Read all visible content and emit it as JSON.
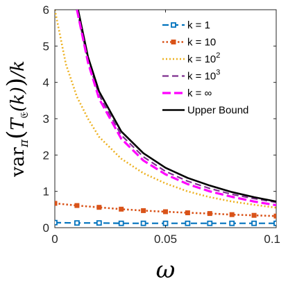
{
  "chart_data": {
    "type": "line",
    "title": "",
    "xlabel": "ω",
    "ylabel_parts": {
      "main": "var",
      "sub_pi": "π",
      "open": "(",
      "T": "T",
      "sub_E": "𝔈",
      "arg": "(k)",
      "close": ")",
      "tail": "/k"
    },
    "xlim": [
      0,
      0.1
    ],
    "ylim": [
      0,
      6
    ],
    "x_ticks": [
      "0",
      "0.05",
      "0.1"
    ],
    "y_ticks": [
      "0",
      "1",
      "2",
      "3",
      "4",
      "5",
      "6"
    ],
    "grid": false,
    "legend_position": "top-right",
    "legend": [
      {
        "label": "k = 1",
        "sup": ""
      },
      {
        "label": "k = 10",
        "sup": ""
      },
      {
        "label": "k = 10",
        "sup": "2"
      },
      {
        "label": "k = 10",
        "sup": "3"
      },
      {
        "label": "k = ∞",
        "sup": ""
      },
      {
        "label": "Upper Bound",
        "sup": ""
      }
    ],
    "series": [
      {
        "style": "dash-square",
        "color": "#0072BD",
        "x": [
          0,
          0.01,
          0.02,
          0.03,
          0.04,
          0.05,
          0.06,
          0.07,
          0.08,
          0.09,
          0.1
        ],
        "y": [
          0.14,
          0.13,
          0.13,
          0.12,
          0.12,
          0.12,
          0.12,
          0.12,
          0.12,
          0.12,
          0.12
        ]
      },
      {
        "style": "dot-square",
        "color": "#D95319",
        "x": [
          0,
          0.01,
          0.02,
          0.03,
          0.04,
          0.05,
          0.06,
          0.07,
          0.08,
          0.09,
          0.1
        ],
        "y": [
          0.67,
          0.61,
          0.56,
          0.51,
          0.47,
          0.44,
          0.41,
          0.39,
          0.36,
          0.34,
          0.32
        ]
      },
      {
        "style": "dot",
        "color": "#EDB120",
        "x": [
          0,
          0.005,
          0.01,
          0.015,
          0.02,
          0.03,
          0.04,
          0.05,
          0.06,
          0.07,
          0.08,
          0.09,
          0.1
        ],
        "y": [
          6.0,
          4.5,
          3.6,
          3.0,
          2.5,
          1.9,
          1.5,
          1.22,
          1.0,
          0.84,
          0.72,
          0.63,
          0.55
        ]
      },
      {
        "style": "dash",
        "color": "#7E2F8E",
        "x": [
          0.01,
          0.015,
          0.02,
          0.03,
          0.04,
          0.05,
          0.06,
          0.07,
          0.08,
          0.09,
          0.1
        ],
        "y": [
          6.0,
          4.6,
          3.65,
          2.55,
          1.95,
          1.55,
          1.28,
          1.08,
          0.92,
          0.8,
          0.7
        ]
      },
      {
        "style": "dash-thick",
        "color": "#FF00FF",
        "x": [
          0.01,
          0.015,
          0.02,
          0.03,
          0.04,
          0.05,
          0.06,
          0.07,
          0.08,
          0.09,
          0.1
        ],
        "y": [
          6.0,
          4.55,
          3.55,
          2.45,
          1.85,
          1.47,
          1.2,
          1.0,
          0.85,
          0.72,
          0.62
        ]
      },
      {
        "style": "solid",
        "color": "#000000",
        "x": [
          0.0105,
          0.015,
          0.02,
          0.03,
          0.04,
          0.05,
          0.06,
          0.07,
          0.08,
          0.09,
          0.1
        ],
        "y": [
          6.0,
          4.7,
          3.75,
          2.65,
          2.05,
          1.65,
          1.37,
          1.16,
          0.98,
          0.84,
          0.72
        ]
      }
    ]
  }
}
